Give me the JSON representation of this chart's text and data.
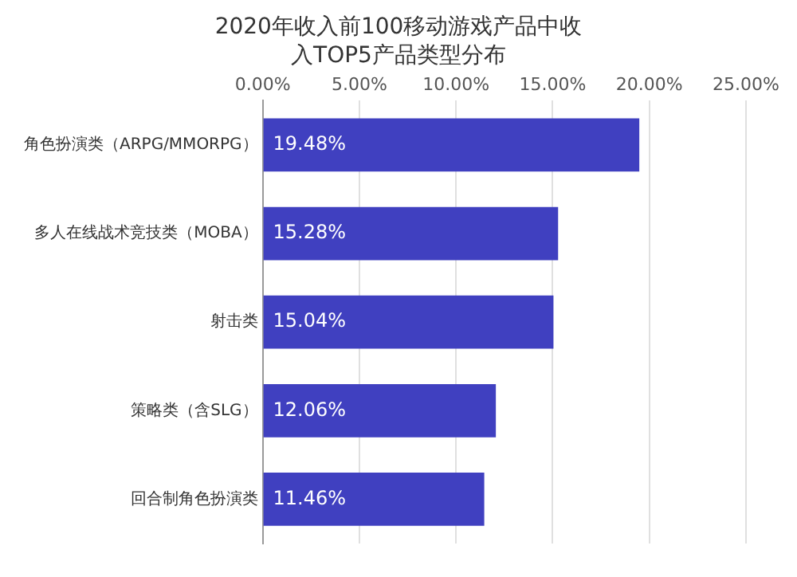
{
  "chart_data": {
    "type": "bar",
    "orientation": "horizontal",
    "title": "2020年收入前100移动游戏产品中收入TOP5产品类型分布",
    "categories": [
      "角色扮演类（ARPG/MMORPG）",
      "多人在线战术竞技类（MOBA）",
      "射击类",
      "策略类（含SLG）",
      "回合制角色扮演类"
    ],
    "values": [
      19.48,
      15.28,
      15.04,
      12.06,
      11.46
    ],
    "value_labels": [
      "19.48%",
      "15.28%",
      "15.04%",
      "12.06%",
      "11.46%"
    ],
    "color": "#4040c0",
    "xlim": [
      0,
      25
    ],
    "xticks": [
      {
        "value": 0,
        "label": "0.00%"
      },
      {
        "value": 5,
        "label": "5.00%"
      },
      {
        "value": 10,
        "label": "10.00%"
      },
      {
        "value": 15,
        "label": "15.00%"
      },
      {
        "value": 20,
        "label": "20.00%"
      },
      {
        "value": 25,
        "label": "25.00%"
      }
    ],
    "grid": "x"
  }
}
